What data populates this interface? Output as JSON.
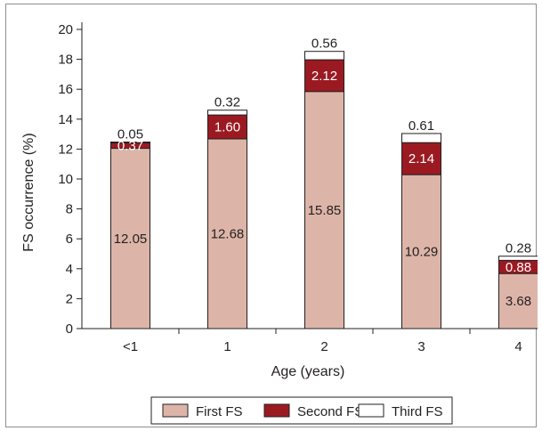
{
  "chart_data": {
    "type": "bar",
    "stacked": true,
    "categories": [
      "<1",
      "1",
      "2",
      "3",
      "4"
    ],
    "series": [
      {
        "name": "First FS",
        "values": [
          12.05,
          12.68,
          15.85,
          10.29,
          3.68
        ],
        "color": "#ddb5a8"
      },
      {
        "name": "Second FS",
        "values": [
          0.37,
          1.6,
          2.12,
          2.14,
          0.88
        ],
        "color": "#9b1a22"
      },
      {
        "name": "Third FS",
        "values": [
          0.05,
          0.32,
          0.56,
          0.61,
          0.28
        ],
        "color": "#ffffff"
      }
    ],
    "data_labels": [
      [
        "12.05",
        "12.68",
        "15.85",
        "10.29",
        "3.68"
      ],
      [
        "0.37",
        "1.60",
        "2.12",
        "2.14",
        "0.88"
      ],
      [
        "0.05",
        "0.32",
        "0.56",
        "0.61",
        "0.28"
      ]
    ],
    "xlabel": "Age (years)",
    "ylabel": "FS occurrence (%)",
    "ylim": [
      0,
      20
    ],
    "yticks": [
      0,
      2,
      4,
      6,
      8,
      10,
      12,
      14,
      16,
      18,
      20
    ],
    "grid": false,
    "legend_position": "bottom"
  }
}
